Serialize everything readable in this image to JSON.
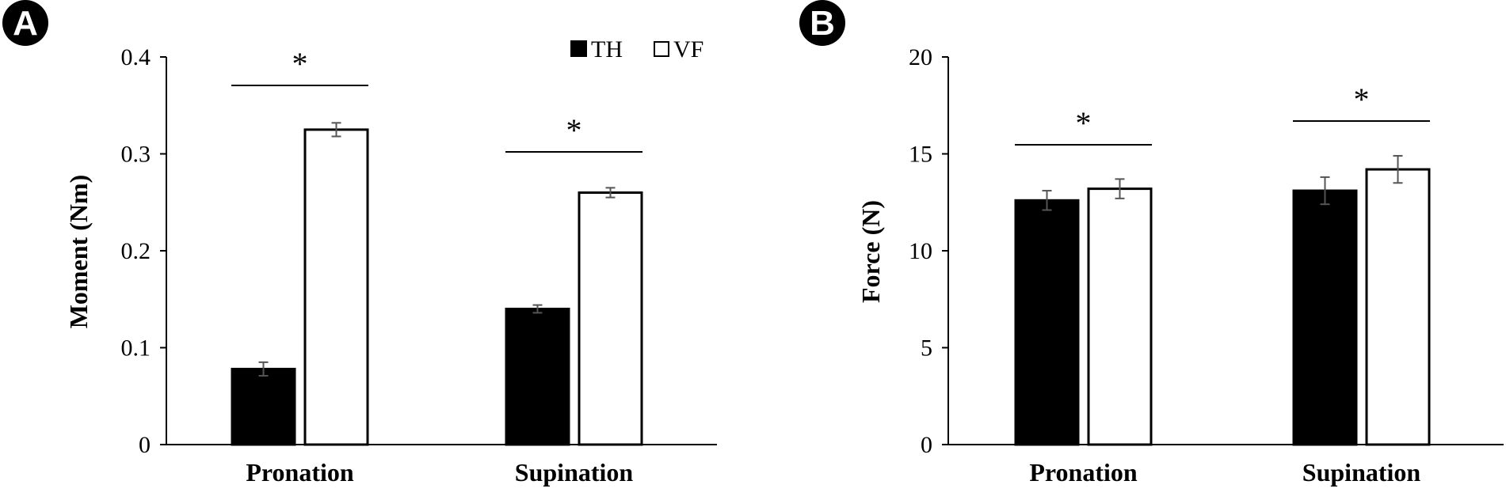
{
  "chart_data": [
    {
      "panel": "A",
      "type": "bar",
      "ylabel": "Moment (Nm)",
      "xlabel": "",
      "categories": [
        "Pronation",
        "Supination"
      ],
      "ylim": [
        0,
        0.4
      ],
      "yticks": [
        0,
        0.1,
        0.2,
        0.3,
        0.4
      ],
      "ytick_labels": [
        "0",
        "0.1",
        "0.2",
        "0.3",
        "0.4"
      ],
      "series": [
        {
          "name": "TH",
          "values": [
            0.078,
            0.14
          ],
          "errors": [
            0.007,
            0.004
          ],
          "color": "#000000"
        },
        {
          "name": "VF",
          "values": [
            0.325,
            0.26
          ],
          "errors": [
            0.007,
            0.005
          ],
          "color": "#ffffff"
        }
      ],
      "significance": [
        "*",
        "*"
      ],
      "legend": {
        "position": "top-right",
        "entries": [
          "TH",
          "VF"
        ]
      },
      "grid": false
    },
    {
      "panel": "B",
      "type": "bar",
      "ylabel": "Force (N)",
      "xlabel": "",
      "categories": [
        "Pronation",
        "Supination"
      ],
      "ylim": [
        0,
        20
      ],
      "yticks": [
        0,
        5,
        10,
        15,
        20
      ],
      "ytick_labels": [
        "0",
        "5",
        "10",
        "15",
        "20"
      ],
      "series": [
        {
          "name": "TH",
          "values": [
            12.6,
            13.1
          ],
          "errors": [
            0.5,
            0.7
          ],
          "color": "#000000"
        },
        {
          "name": "VF",
          "values": [
            13.2,
            14.2
          ],
          "errors": [
            0.5,
            0.7
          ],
          "color": "#ffffff"
        }
      ],
      "significance": [
        "*",
        "*"
      ],
      "grid": false
    }
  ]
}
